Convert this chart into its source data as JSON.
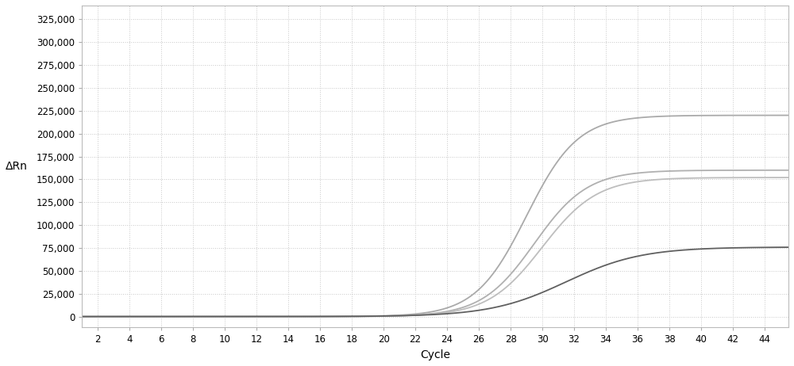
{
  "title": "",
  "xlabel": "Cycle",
  "ylabel": "ΔRn",
  "xlim": [
    1,
    45.5
  ],
  "ylim": [
    -12000,
    340000
  ],
  "xticks": [
    2,
    4,
    6,
    8,
    10,
    12,
    14,
    16,
    18,
    20,
    22,
    24,
    26,
    28,
    30,
    32,
    34,
    36,
    38,
    40,
    42,
    44
  ],
  "yticks": [
    0,
    25000,
    50000,
    75000,
    100000,
    125000,
    150000,
    175000,
    200000,
    225000,
    250000,
    275000,
    300000,
    325000
  ],
  "background_color": "#ffffff",
  "grid_color": "#c8c8c8",
  "curves": [
    {
      "color": "#aaaaaa",
      "linewidth": 1.3,
      "midpoint": 29.0,
      "steepness": 0.62,
      "plateau": 220000
    },
    {
      "color": "#b0b0b0",
      "linewidth": 1.3,
      "midpoint": 29.5,
      "steepness": 0.6,
      "plateau": 160000
    },
    {
      "color": "#bebebe",
      "linewidth": 1.3,
      "midpoint": 30.0,
      "steepness": 0.58,
      "plateau": 152000
    },
    {
      "color": "#606060",
      "linewidth": 1.3,
      "midpoint": 31.5,
      "steepness": 0.42,
      "plateau": 76000
    }
  ],
  "xlabel_fontsize": 10,
  "ylabel_fontsize": 10,
  "tick_fontsize": 8.5,
  "figsize": [
    10.0,
    4.62
  ],
  "dpi": 100
}
